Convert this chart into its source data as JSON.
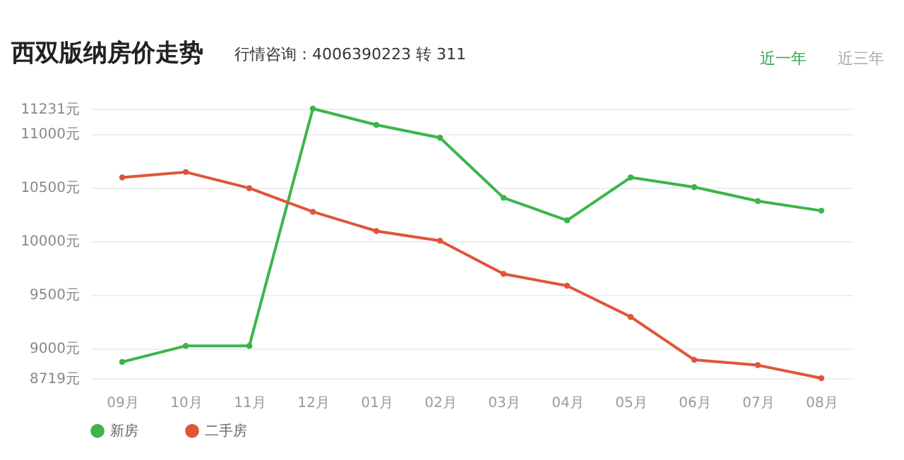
{
  "chart_data": {
    "type": "line",
    "title": "西双版纳房价走势",
    "subtitle": "行情咨询：4006390223 转 311",
    "annotations": [
      "近一年",
      "近三年"
    ],
    "categories": [
      "09月",
      "10月",
      "11月",
      "12月",
      "01月",
      "02月",
      "03月",
      "04月",
      "05月",
      "06月",
      "07月",
      "08月"
    ],
    "series": [
      {
        "name": "新房",
        "color": "#3cb54a",
        "values": [
          8870,
          9020,
          9020,
          11231,
          11080,
          10960,
          10400,
          10190,
          10590,
          10500,
          10370,
          10280
        ]
      },
      {
        "name": "二手房",
        "color": "#e0553a",
        "values": [
          10590,
          10640,
          10490,
          10270,
          10090,
          10000,
          9690,
          9580,
          9290,
          8890,
          8840,
          8719
        ]
      }
    ],
    "ylim": [
      8719,
      11231
    ],
    "yticks": [
      {
        "value": 8719,
        "label": "8719元"
      },
      {
        "value": 9000,
        "label": "9000元"
      },
      {
        "value": 9500,
        "label": "9500元"
      },
      {
        "value": 10000,
        "label": "10000元"
      },
      {
        "value": 10500,
        "label": "10500元"
      },
      {
        "value": 11000,
        "label": "11000元"
      },
      {
        "value": 11231,
        "label": "11231元"
      }
    ],
    "grid": "y",
    "legend": "bottom",
    "marker": "circle",
    "line_style": "solid"
  }
}
